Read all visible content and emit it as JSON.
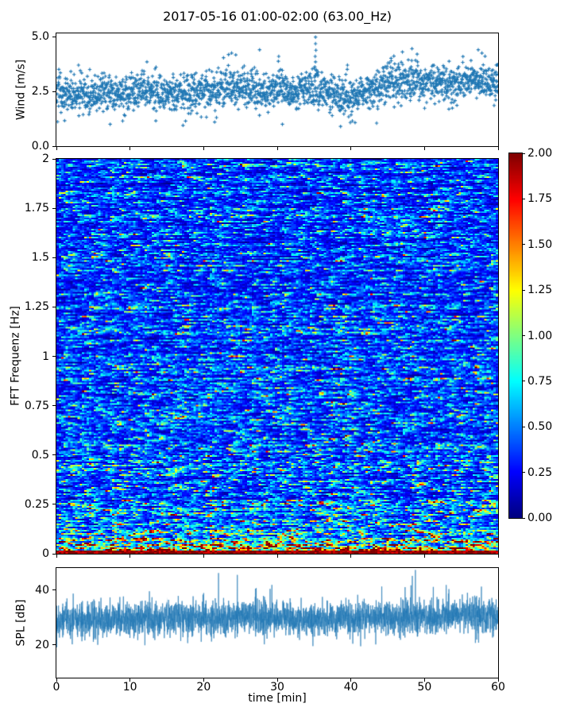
{
  "title": "2017-05-16 01:00-02:00 (63.00_Hz)",
  "background_color": "#ffffff",
  "accent_color": "#1f77b4",
  "chart_data": [
    {
      "type": "scatter",
      "name": "wind-speed",
      "ylabel": "Wind [m/s]",
      "xlim": [
        0,
        60
      ],
      "ylim": [
        0,
        5.15
      ],
      "yticks": {
        "values": [
          0,
          2.5,
          5
        ],
        "labels": [
          "0.0",
          "2.5",
          "5.0"
        ]
      },
      "marker": "+",
      "color": "#1f77b4",
      "n_points": 2200,
      "noise_sd": 0.42,
      "seed": 42,
      "baseline_t": [
        0,
        3,
        6,
        9,
        12,
        15,
        18,
        21,
        24,
        27,
        30,
        33,
        36,
        39,
        42,
        45,
        48,
        51,
        54,
        57,
        60
      ],
      "baseline_v": [
        2.5,
        2.35,
        2.45,
        2.3,
        2.55,
        2.4,
        2.45,
        2.5,
        2.65,
        2.6,
        2.5,
        2.6,
        2.5,
        2.25,
        2.35,
        2.95,
        3.1,
        2.85,
        2.9,
        3.0,
        2.85
      ],
      "outliers_high": [
        [
          35.2,
          4.98
        ],
        [
          35.2,
          4.68
        ],
        [
          35.25,
          4.38
        ],
        [
          35.15,
          4.1
        ],
        [
          35.2,
          3.85
        ],
        [
          35.1,
          3.62
        ],
        [
          35.3,
          3.45
        ],
        [
          47.0,
          4.3
        ],
        [
          48.3,
          4.45
        ],
        [
          49.0,
          4.2
        ],
        [
          57.3,
          4.4
        ],
        [
          57.8,
          4.25
        ],
        [
          27.6,
          4.4
        ],
        [
          23.8,
          4.25
        ],
        [
          12.3,
          3.85
        ],
        [
          30.2,
          4.1
        ],
        [
          3.0,
          3.7
        ]
      ],
      "outliers_low": [
        [
          7.3,
          1.0
        ],
        [
          9.0,
          1.15
        ],
        [
          17.2,
          0.95
        ],
        [
          21.5,
          1.1
        ],
        [
          30.7,
          1.0
        ],
        [
          38.6,
          0.9
        ],
        [
          40.2,
          1.15
        ],
        [
          43.5,
          1.05
        ]
      ]
    },
    {
      "type": "heatmap",
      "name": "fft-spectrogram",
      "ylabel": "FFT Frequenz [Hz]",
      "xlim": [
        0,
        60
      ],
      "ylim": [
        0,
        2
      ],
      "clim": [
        0,
        2
      ],
      "colormap": "jet",
      "yticks": {
        "values": [
          0,
          0.25,
          0.5,
          0.75,
          1,
          1.25,
          1.5,
          1.75,
          2
        ],
        "labels": [
          "0",
          "0.25",
          "0.5",
          "0.75",
          "1",
          "1.25",
          "1.5",
          "1.75",
          "2"
        ]
      },
      "cols": 190,
      "rows": 249,
      "seed": 7,
      "gen": {
        "base": 0.27,
        "mid_boost": 0.12,
        "mid_scale": 0.5,
        "low_boost": 0.95,
        "low_scale": 0.045,
        "ar": 0.52,
        "row_var": 0.55,
        "bottom_band_freq": 0.016,
        "bottom_value": 1.8
      },
      "colorbar": {
        "ticks": {
          "values": [
            0,
            0.25,
            0.5,
            0.75,
            1,
            1.25,
            1.5,
            1.75,
            2
          ],
          "labels": [
            "0.00",
            "0.25",
            "0.50",
            "0.75",
            "1.00",
            "1.25",
            "1.50",
            "1.75",
            "2.00"
          ]
        }
      }
    },
    {
      "type": "line",
      "name": "spl",
      "ylabel": "SPL [dB]",
      "xlabel": "time [min]",
      "xlim": [
        0,
        60
      ],
      "ylim": [
        8,
        48
      ],
      "yticks": {
        "values": [
          20,
          40
        ],
        "labels": [
          "20",
          "40"
        ]
      },
      "xticks": {
        "values": [
          0,
          10,
          20,
          30,
          40,
          50,
          60
        ],
        "labels": [
          "0",
          "10",
          "20",
          "30",
          "40",
          "50",
          "60"
        ]
      },
      "color": "#1f77b4",
      "n_points": 3600,
      "noise_sd": 3.1,
      "seed": 99,
      "baseline_t": [
        0,
        5,
        10,
        15,
        20,
        25,
        30,
        35,
        40,
        45,
        50,
        55,
        60
      ],
      "baseline_v": [
        29.5,
        29.2,
        29.6,
        29.3,
        29.8,
        30.2,
        29.6,
        29.3,
        29.8,
        30.2,
        30.0,
        31.0,
        30.2
      ],
      "spike_prob": 0.005,
      "spike_up": 13,
      "spike_down": 12
    }
  ]
}
